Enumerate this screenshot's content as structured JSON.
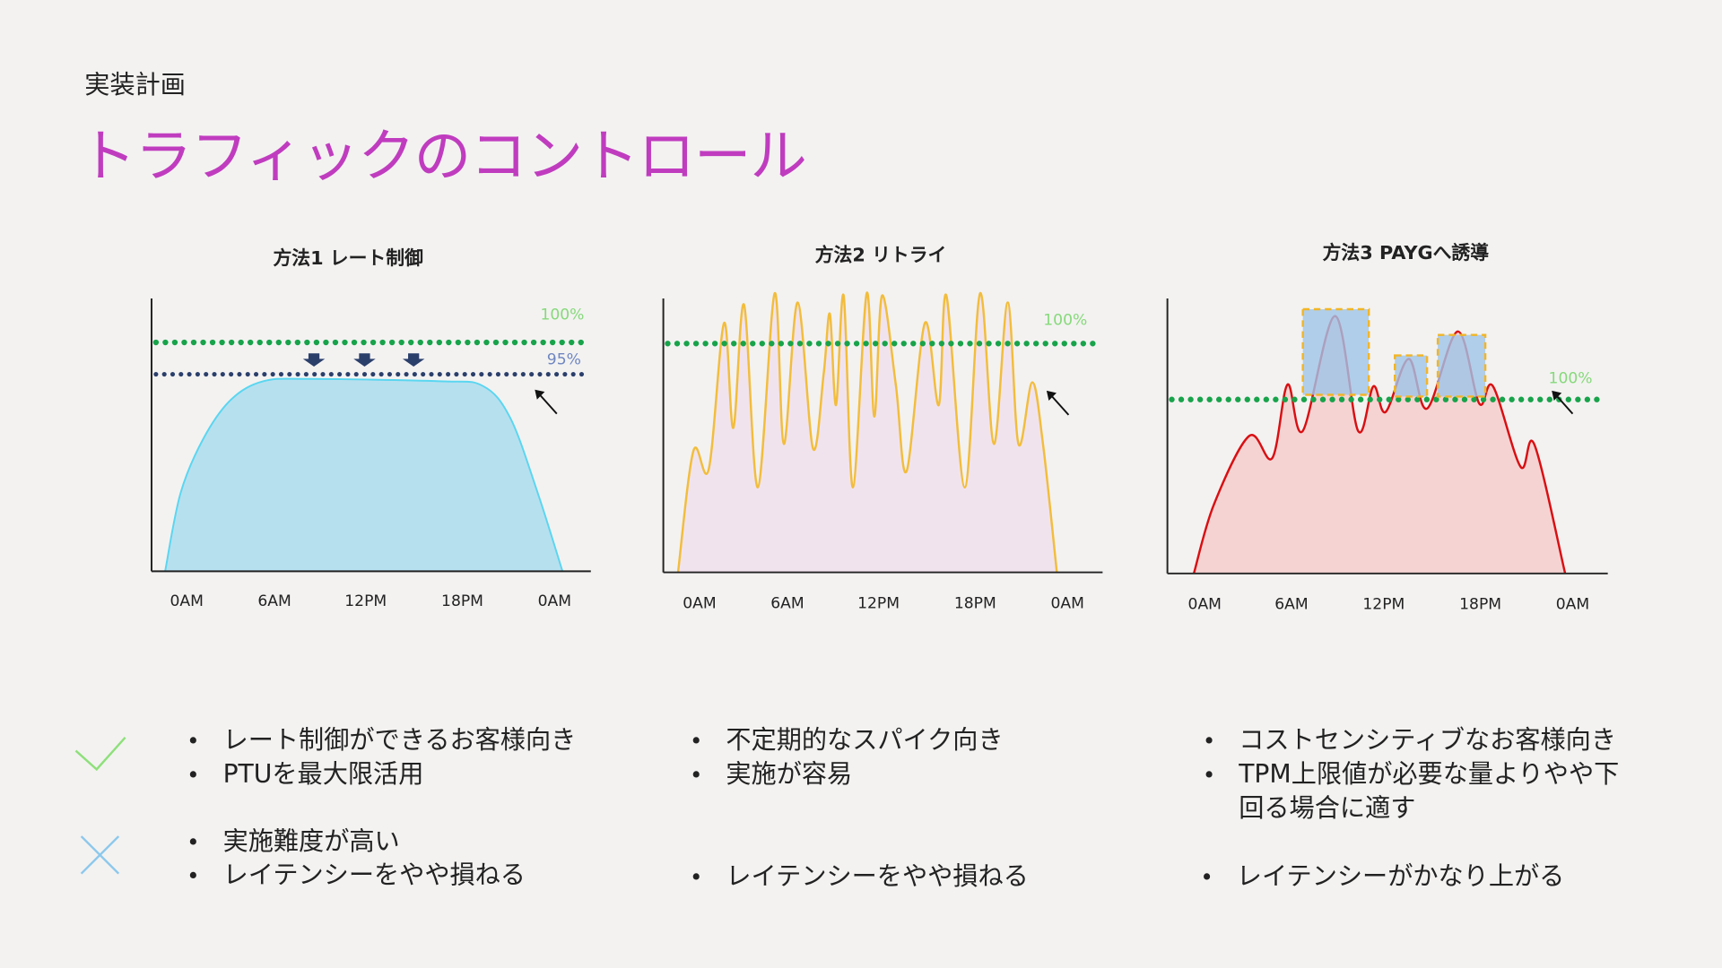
{
  "header": {
    "subtitle": "実装計画",
    "title": "トラフィックのコントロール"
  },
  "chart_data": [
    {
      "type": "area",
      "title": "方法1 レート制御",
      "x_unit": "hour",
      "xticks": [
        "0AM",
        "6AM",
        "12PM",
        "18PM",
        "0AM"
      ],
      "xlim": [
        0,
        24
      ],
      "y_unit": "% of capacity",
      "x": [
        -1.4,
        -0.4,
        1.1,
        2.9,
        5,
        7.9,
        16.5,
        19.3,
        21.1,
        22.9,
        24.5
      ],
      "y": [
        0,
        34,
        58,
        75,
        83,
        84,
        83,
        81,
        67,
        34,
        0
      ],
      "hlines": [
        {
          "label": "100%",
          "value": 100,
          "color": "#17a34a",
          "label_color": "#86d97a"
        },
        {
          "label": "95%",
          "value": 95,
          "color": "#2b3f6b",
          "label_color": "#6f86c0"
        }
      ],
      "down_arrows_at_hours": [
        8.3,
        11.6,
        14.8
      ],
      "colors": {
        "fill": "#b7e0ef",
        "line": "#5ad6f0"
      }
    },
    {
      "type": "area",
      "title": "方法2 リトライ",
      "x_unit": "hour",
      "xticks": [
        "0AM",
        "6AM",
        "12PM",
        "18PM",
        "0AM"
      ],
      "xlim": [
        0,
        24
      ],
      "y_unit": "% of capacity",
      "x": [
        -1.4,
        -0.4,
        0.6,
        1.6,
        2.2,
        2.9,
        3.8,
        4.9,
        5.5,
        6.4,
        7.4,
        8.1,
        8.5,
        8.9,
        9.4,
        10.0,
        10.9,
        11.4,
        11.9,
        12.8,
        13.5,
        14.7,
        15.6,
        16.1,
        17.3,
        18.3,
        19.2,
        20.1,
        20.8,
        21.7,
        22.4,
        23.3
      ],
      "y": [
        0,
        53,
        45,
        109,
        63,
        117,
        37,
        122,
        56,
        118,
        54,
        87,
        113,
        73,
        121,
        37,
        122,
        68,
        121,
        82,
        44,
        109,
        73,
        121,
        37,
        122,
        56,
        118,
        56,
        83,
        56,
        0
      ],
      "hlines": [
        {
          "label": "100%",
          "value": 100,
          "color": "#17a34a",
          "label_color": "#86d97a"
        }
      ],
      "colors": {
        "fill": "#f1e3ee",
        "line": "#f2bd3c"
      }
    },
    {
      "type": "area",
      "title": "方法3 PAYGへ誘導",
      "x_unit": "hour",
      "xticks": [
        "0AM",
        "6AM",
        "12PM",
        "18PM",
        "0AM"
      ],
      "xlim": [
        0,
        24
      ],
      "y_unit": "% of capacity",
      "x": [
        -0.7,
        0.6,
        2.9,
        4.4,
        5.4,
        6.4,
        8.5,
        10.0,
        11.0,
        11.8,
        13.3,
        14.5,
        16.5,
        17.9,
        18.8,
        20.6,
        21.5,
        23.5
      ],
      "y": [
        0,
        40,
        80,
        67,
        110,
        83,
        150,
        83,
        109,
        94,
        125,
        96,
        141,
        99,
        109,
        62,
        75,
        0
      ],
      "hlines": [
        {
          "label": "100%",
          "value": 100,
          "color": "#17a34a",
          "label_color": "#86d97a"
        }
      ],
      "overflow_boxes": [
        {
          "x0": 6.4,
          "x1": 10.7,
          "y0": 104,
          "y1": 154
        },
        {
          "x0": 12.4,
          "x1": 14.5,
          "y0": 103,
          "y1": 127
        },
        {
          "x0": 15.2,
          "x1": 18.3,
          "y0": 103,
          "y1": 139
        }
      ],
      "colors": {
        "fill": "#f6d3d3",
        "line": "#d90f12",
        "box_fill": "#9fc4e8",
        "box_border": "#f2b526"
      }
    }
  ],
  "pros_cons": {
    "pros_icon": "check-icon",
    "cons_icon": "cross-icon",
    "colors": {
      "check": "#8ee07a",
      "cross": "#8cc8ec"
    },
    "columns": [
      {
        "pros": [
          "レート制御ができるお客様向き",
          "PTUを最大限活用"
        ],
        "cons": [
          "実施難度が高い",
          "レイテンシーをやや損ねる"
        ]
      },
      {
        "pros": [
          "不定期的なスパイク向き",
          "実施が容易"
        ],
        "cons": [
          "レイテンシーをやや損ねる"
        ]
      },
      {
        "pros": [
          "コストセンシティブなお客様向き",
          "TPM上限値が必要な量よりやや下回る場合に適す"
        ],
        "cons": [
          "レイテンシーがかなり上がる"
        ]
      }
    ]
  }
}
